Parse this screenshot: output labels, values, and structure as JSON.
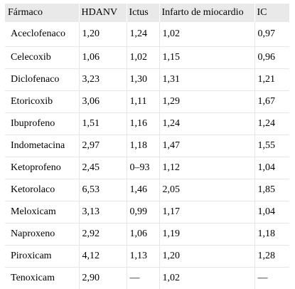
{
  "table": {
    "headers": [
      "Fármaco",
      "HDANV",
      "Ictus",
      "Infarto de miocardio",
      "IC"
    ],
    "rows": [
      [
        "Aceclofenaco",
        "1,20",
        "1,24",
        "1,02",
        "0,97"
      ],
      [
        "Celecoxib",
        "1,06",
        "1,02",
        "1,15",
        "0,96"
      ],
      [
        "Diclofenaco",
        "3,23",
        "1,30",
        "1,31",
        "1,21"
      ],
      [
        "Etoricoxib",
        "3,06",
        "1,11",
        "1,29",
        "1,67"
      ],
      [
        "Ibuprofeno",
        "1,51",
        "1,16",
        "1,24",
        "1,24"
      ],
      [
        "Indometacina",
        "2,97",
        "1,18",
        "1,47",
        "1,55"
      ],
      [
        "Ketoprofeno",
        "2,45",
        "0–93",
        "1,12",
        "1,04"
      ],
      [
        "Ketorolaco",
        "6,53",
        "1,46",
        "2,05",
        "1,85"
      ],
      [
        "Meloxicam",
        "3,13",
        "0,99",
        "1,17",
        "1,04"
      ],
      [
        "Naproxeno",
        "2,92",
        "1,06",
        "1,19",
        "1,18"
      ],
      [
        "Piroxicam",
        "4,12",
        "1,13",
        "1,20",
        "1,28"
      ],
      [
        "Tenoxicam",
        "2,90",
        "—",
        "1,02",
        "—"
      ]
    ]
  }
}
